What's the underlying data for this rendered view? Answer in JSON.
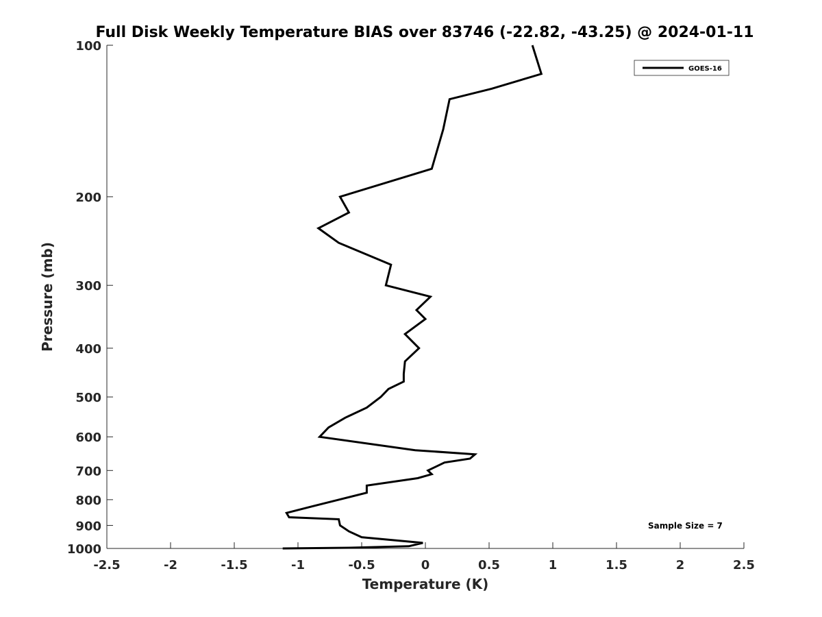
{
  "chart_data": {
    "type": "line",
    "title": "Full Disk Weekly Temperature BIAS over 83746 (-22.82, -43.25) @ 2024-01-11",
    "xlabel": "Temperature (K)",
    "ylabel": "Pressure (mb)",
    "xlim": [
      -2.5,
      2.5
    ],
    "ylim": [
      1000,
      100
    ],
    "y_scale": "log",
    "grid": false,
    "legend_position": "top-right",
    "x_ticks": [
      "-2.5",
      "-2",
      "-1.5",
      "-1",
      "-0.5",
      "0",
      "0.5",
      "1",
      "1.5",
      "2",
      "2.5"
    ],
    "y_ticks": [
      "100",
      "200",
      "300",
      "400",
      "500",
      "600",
      "700",
      "800",
      "900",
      "1000"
    ],
    "series": [
      {
        "name": "GOES-16",
        "color": "#000000",
        "points": [
          [
            0.84,
            100
          ],
          [
            0.91,
            114
          ],
          [
            0.52,
            122
          ],
          [
            0.19,
            128
          ],
          [
            0.14,
            147
          ],
          [
            0.05,
            176
          ],
          [
            -0.67,
            200
          ],
          [
            -0.6,
            215
          ],
          [
            -0.84,
            231
          ],
          [
            -0.68,
            247
          ],
          [
            -0.27,
            273
          ],
          [
            -0.31,
            300
          ],
          [
            0.04,
            316
          ],
          [
            -0.07,
            336
          ],
          [
            0.0,
            350
          ],
          [
            -0.16,
            375
          ],
          [
            -0.05,
            400
          ],
          [
            -0.16,
            425
          ],
          [
            -0.17,
            450
          ],
          [
            -0.17,
            466
          ],
          [
            -0.29,
            482
          ],
          [
            -0.35,
            500
          ],
          [
            -0.46,
            525
          ],
          [
            -0.63,
            550
          ],
          [
            -0.76,
            575
          ],
          [
            -0.83,
            600
          ],
          [
            -0.08,
            638
          ],
          [
            0.39,
            650
          ],
          [
            0.35,
            663
          ],
          [
            0.15,
            675
          ],
          [
            0.02,
            700
          ],
          [
            0.05,
            712
          ],
          [
            -0.06,
            725
          ],
          [
            -0.46,
            750
          ],
          [
            -0.46,
            775
          ],
          [
            -0.68,
            800
          ],
          [
            -0.89,
            825
          ],
          [
            -1.09,
            850
          ],
          [
            -1.07,
            867
          ],
          [
            -0.68,
            875
          ],
          [
            -0.67,
            900
          ],
          [
            -0.6,
            925
          ],
          [
            -0.5,
            950
          ],
          [
            -0.02,
            975
          ],
          [
            -0.13,
            990
          ],
          [
            -0.6,
            997
          ],
          [
            -1.12,
            1000
          ]
        ]
      }
    ],
    "annotation": "Sample Size = 7"
  }
}
